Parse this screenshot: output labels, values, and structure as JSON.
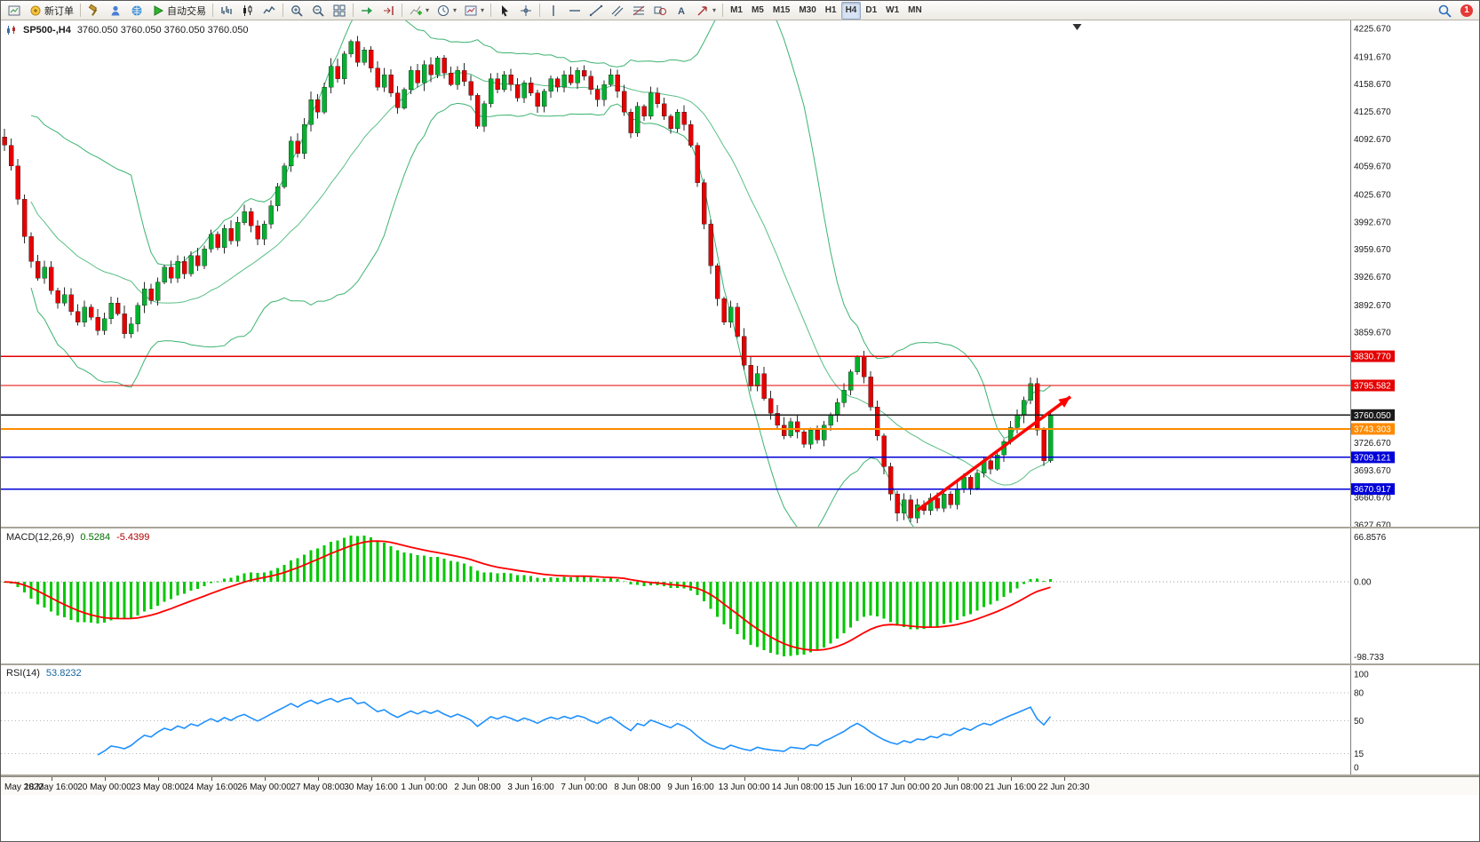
{
  "toolbar": {
    "new_order_label": "新订单",
    "auto_trading_label": "自动交易",
    "notification_count": "1",
    "timeframes": [
      "M1",
      "M5",
      "M15",
      "M30",
      "H1",
      "H4",
      "D1",
      "W1",
      "MN"
    ],
    "active_timeframe": "H4",
    "items": [
      {
        "icon": "chart-window",
        "name": "chart-window-button"
      },
      {
        "icon": "new-order",
        "name": "new-order-button",
        "label": "新订单"
      },
      {
        "sep": true
      },
      {
        "icon": "hammer",
        "name": "trade-tools-button"
      },
      {
        "icon": "profile",
        "name": "profile-button"
      },
      {
        "icon": "globe",
        "name": "market-button"
      },
      {
        "icon": "play",
        "name": "auto-trading-button",
        "label": "自动交易"
      },
      {
        "sep": true
      },
      {
        "icon": "bars-chart",
        "name": "bar-chart-button"
      },
      {
        "icon": "candles-chart",
        "name": "candlestick-chart-button"
      },
      {
        "icon": "line-chart",
        "name": "line-chart-button"
      },
      {
        "sep": true
      },
      {
        "icon": "zoom-in",
        "name": "zoom-in-button"
      },
      {
        "icon": "zoom-out",
        "name": "zoom-out-button"
      },
      {
        "icon": "tile",
        "name": "tile-windows-button"
      },
      {
        "sep": true
      },
      {
        "icon": "auto-scroll",
        "name": "auto-scroll-button"
      },
      {
        "icon": "chart-shift",
        "name": "chart-shift-button"
      },
      {
        "sep": true
      },
      {
        "icon": "add-indicator",
        "name": "indicators-button",
        "dropdown": true
      },
      {
        "icon": "clock",
        "name": "periods-button",
        "dropdown": true
      },
      {
        "icon": "template",
        "name": "templates-button",
        "dropdown": true
      },
      {
        "sep": true
      },
      {
        "icon": "cursor",
        "name": "cursor-button"
      },
      {
        "icon": "crosshair",
        "name": "crosshair-button"
      },
      {
        "sep": true
      },
      {
        "icon": "vline",
        "name": "vertical-line-button"
      },
      {
        "icon": "hline",
        "name": "horizontal-line-button"
      },
      {
        "icon": "trendline",
        "name": "trendline-button"
      },
      {
        "icon": "channel",
        "name": "channel-button"
      },
      {
        "icon": "fibo",
        "name": "fibonacci-button"
      },
      {
        "icon": "shapes",
        "name": "shapes-button"
      },
      {
        "icon": "text",
        "name": "text-label-button"
      },
      {
        "icon": "arrows",
        "name": "arrow-objects-button",
        "dropdown": true
      },
      {
        "sep": true
      }
    ]
  },
  "chart": {
    "symbol_label": "SP500-,H4",
    "ohlc_text": "3760.050 3760.050 3760.050 3760.050"
  },
  "macd_panel": {
    "title": "MACD(12,26,9)",
    "main_value": "0.5284",
    "signal_value": "-5.4399",
    "scale_labels": [
      "66.8576",
      "0.00",
      "-98.733"
    ]
  },
  "rsi_panel": {
    "title": "RSI(14)",
    "value": "53.8232",
    "scale_labels": [
      "100",
      "80",
      "50",
      "15",
      "0"
    ],
    "scale_values": [
      100,
      80,
      50,
      15,
      0
    ]
  },
  "colors": {
    "up": "#00b22d",
    "down": "#e60000",
    "bollinger": "#3cb371",
    "macd_histogram": "#00c800",
    "macd_signal": "#ff0000",
    "rsi_line": "#1e90ff",
    "trend_arrow": "#ff0000"
  },
  "chart_data": {
    "type": "candlestick",
    "symbol": "SP500-",
    "timeframe": "H4",
    "ylim": [
      3627.67,
      4225.67
    ],
    "x_labels": [
      "May 2022",
      "18 May 16:00",
      "20 May 00:00",
      "23 May 08:00",
      "24 May 16:00",
      "26 May 00:00",
      "27 May 08:00",
      "30 May 16:00",
      "1 Jun 00:00",
      "2 Jun 08:00",
      "3 Jun 16:00",
      "7 Jun 00:00",
      "8 Jun 08:00",
      "9 Jun 16:00",
      "13 Jun 00:00",
      "14 Jun 08:00",
      "15 Jun 16:00",
      "17 Jun 00:00",
      "20 Jun 08:00",
      "21 Jun 16:00",
      "22 Jun 20:30"
    ],
    "closes": [
      4085,
      4060,
      4020,
      3975,
      3945,
      3925,
      3938,
      3910,
      3895,
      3905,
      3885,
      3872,
      3890,
      3878,
      3862,
      3876,
      3895,
      3882,
      3858,
      3870,
      3892,
      3912,
      3898,
      3920,
      3938,
      3925,
      3945,
      3930,
      3952,
      3940,
      3960,
      3978,
      3962,
      3985,
      3970,
      3992,
      4005,
      3988,
      3972,
      3990,
      4012,
      4035,
      4060,
      4090,
      4075,
      4110,
      4140,
      4125,
      4155,
      4180,
      4165,
      4195,
      4210,
      4185,
      4200,
      4178,
      4155,
      4170,
      4148,
      4130,
      4152,
      4175,
      4160,
      4182,
      4170,
      4190,
      4172,
      4158,
      4175,
      4162,
      4145,
      4108,
      4135,
      4165,
      4152,
      4170,
      4158,
      4142,
      4160,
      4148,
      4132,
      4150,
      4165,
      4155,
      4170,
      4160,
      4175,
      4168,
      4152,
      4140,
      4158,
      4170,
      4150,
      4125,
      4100,
      4132,
      4120,
      4148,
      4135,
      4120,
      4105,
      4125,
      4110,
      4085,
      4040,
      3990,
      3940,
      3900,
      3872,
      3890,
      3855,
      3820,
      3795,
      3810,
      3780,
      3762,
      3748,
      3735,
      3752,
      3740,
      3725,
      3742,
      3730,
      3748,
      3760,
      3775,
      3790,
      3812,
      3830,
      3806,
      3770,
      3735,
      3698,
      3665,
      3642,
      3658,
      3636,
      3652,
      3645,
      3660,
      3648,
      3665,
      3652,
      3670,
      3685,
      3672,
      3690,
      3705,
      3695,
      3712,
      3728,
      3745,
      3760,
      3778,
      3798,
      3742,
      3705,
      3760
    ],
    "price_axis_ticks": [
      "4225.670",
      "4191.670",
      "4158.670",
      "4125.670",
      "4092.670",
      "4059.670",
      "4025.670",
      "3992.670",
      "3959.670",
      "3926.670",
      "3892.670",
      "3859.670",
      "3726.670",
      "3693.670",
      "3660.670",
      "3627.670"
    ],
    "levels": [
      {
        "label": "3830.770",
        "price": 3830.77,
        "color": "#e40000",
        "text_color": "#ffffff",
        "width": 1.4
      },
      {
        "label": "3795.582",
        "price": 3795.582,
        "color": "#e40000",
        "text_color": "#ffffff",
        "width": 1.4
      },
      {
        "label": "3760.050",
        "price": 3760.05,
        "color": "#1a1a1a",
        "text_color": "#ffffff",
        "width": 1.2
      },
      {
        "label": "3743.303",
        "price": 3743.303,
        "color": "#ff8a00",
        "text_color": "#ffffff",
        "width": 2
      },
      {
        "label": "3709.121",
        "price": 3709.121,
        "color": "#0000d8",
        "text_color": "#ffffff",
        "width": 1.6
      },
      {
        "label": "3670.917",
        "price": 3670.917,
        "color": "#0000d8",
        "text_color": "#ffffff",
        "width": 1.6
      }
    ],
    "indicators": {
      "bollinger": {
        "period": 20,
        "deviation": 2
      },
      "macd": {
        "fast": 12,
        "slow": 26,
        "signal": 9,
        "current_main": 0.5284,
        "current_signal": -5.4399,
        "scale_max": 66.8576,
        "scale_min": -98.733
      },
      "rsi": {
        "period": 14,
        "current": 53.8232,
        "levels": [
          80,
          50,
          15
        ]
      }
    },
    "trend_arrow": {
      "from_bar": 137,
      "from_price": 3645,
      "to_bar": 160,
      "to_price": 3782
    },
    "shift_marker_bar": 161
  }
}
